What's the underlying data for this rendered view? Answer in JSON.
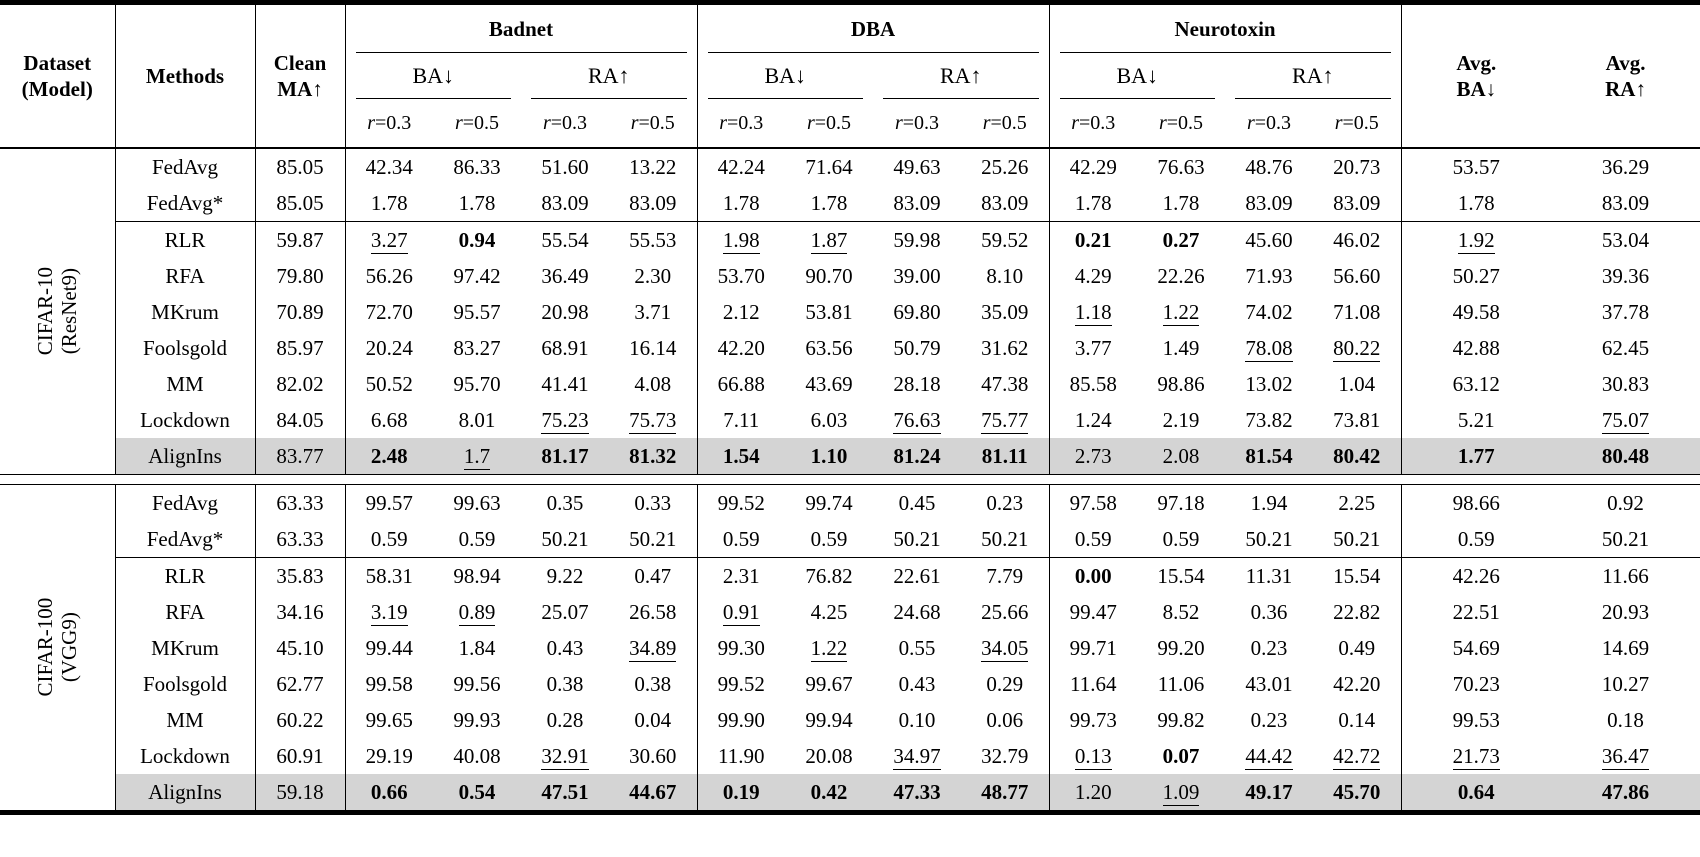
{
  "table": {
    "header": {
      "dataset_line1": "Dataset",
      "dataset_line2": "(Model)",
      "methods": "Methods",
      "clean_line1": "Clean",
      "clean_line2": "MA↑",
      "groups": [
        "Badnet",
        "DBA",
        "Neurotoxin"
      ],
      "sub_ba": "BA↓",
      "sub_ra": "RA↑",
      "rates": [
        "r=0.3",
        "r=0.5"
      ],
      "avg_ba_line1": "Avg.",
      "avg_ba_line2": "BA↓",
      "avg_ra_line1": "Avg.",
      "avg_ra_line2": "RA↑"
    },
    "styles": {
      "highlight_color": "#d4d4d4",
      "rule_color": "#000000"
    },
    "blocks": [
      {
        "dataset_line1": "CIFAR-10",
        "dataset_line2": "(ResNet9)",
        "rows": [
          {
            "method": "FedAvg",
            "cells": [
              "85.05",
              "42.34",
              "86.33",
              "51.60",
              "13.22",
              "42.24",
              "71.64",
              "49.63",
              "25.26",
              "42.29",
              "76.63",
              "48.76",
              "20.73",
              "53.57",
              "36.29"
            ]
          },
          {
            "method": "FedAvg*",
            "cells": [
              "85.05",
              "1.78",
              "1.78",
              "83.09",
              "83.09",
              "1.78",
              "1.78",
              "83.09",
              "83.09",
              "1.78",
              "1.78",
              "83.09",
              "83.09",
              "1.78",
              "83.09"
            ]
          },
          {
            "method": "RLR",
            "sep": true,
            "cells": [
              "59.87",
              "u:3.27",
              "b:0.94",
              "55.54",
              "55.53",
              "u:1.98",
              "u:1.87",
              "59.98",
              "59.52",
              "b:0.21",
              "b:0.27",
              "45.60",
              "46.02",
              "u:1.92",
              "53.04"
            ]
          },
          {
            "method": "RFA",
            "cells": [
              "79.80",
              "56.26",
              "97.42",
              "36.49",
              "2.30",
              "53.70",
              "90.70",
              "39.00",
              "8.10",
              "4.29",
              "22.26",
              "71.93",
              "56.60",
              "50.27",
              "39.36"
            ]
          },
          {
            "method": "MKrum",
            "cells": [
              "70.89",
              "72.70",
              "95.57",
              "20.98",
              "3.71",
              "2.12",
              "53.81",
              "69.80",
              "35.09",
              "u:1.18",
              "u:1.22",
              "74.02",
              "71.08",
              "49.58",
              "37.78"
            ]
          },
          {
            "method": "Foolsgold",
            "cells": [
              "85.97",
              "20.24",
              "83.27",
              "68.91",
              "16.14",
              "42.20",
              "63.56",
              "50.79",
              "31.62",
              "3.77",
              "1.49",
              "u:78.08",
              "u:80.22",
              "42.88",
              "62.45"
            ]
          },
          {
            "method": "MM",
            "cells": [
              "82.02",
              "50.52",
              "95.70",
              "41.41",
              "4.08",
              "66.88",
              "43.69",
              "28.18",
              "47.38",
              "85.58",
              "98.86",
              "13.02",
              "1.04",
              "63.12",
              "30.83"
            ]
          },
          {
            "method": "Lockdown",
            "cells": [
              "84.05",
              "6.68",
              "8.01",
              "u:75.23",
              "u:75.73",
              "7.11",
              "6.03",
              "u:76.63",
              "u:75.77",
              "1.24",
              "2.19",
              "73.82",
              "73.81",
              "5.21",
              "u:75.07"
            ]
          },
          {
            "method": "AlignIns",
            "hl": true,
            "cells": [
              "83.77",
              "b:2.48",
              "u:1.7",
              "b:81.17",
              "b:81.32",
              "b:1.54",
              "b:1.10",
              "b:81.24",
              "b:81.11",
              "2.73",
              "2.08",
              "b:81.54",
              "b:80.42",
              "b:1.77",
              "b:80.48"
            ]
          }
        ]
      },
      {
        "dataset_line1": "CIFAR-100",
        "dataset_line2": "(VGG9)",
        "rows": [
          {
            "method": "FedAvg",
            "cells": [
              "63.33",
              "99.57",
              "99.63",
              "0.35",
              "0.33",
              "99.52",
              "99.74",
              "0.45",
              "0.23",
              "97.58",
              "97.18",
              "1.94",
              "2.25",
              "98.66",
              "0.92"
            ]
          },
          {
            "method": "FedAvg*",
            "cells": [
              "63.33",
              "0.59",
              "0.59",
              "50.21",
              "50.21",
              "0.59",
              "0.59",
              "50.21",
              "50.21",
              "0.59",
              "0.59",
              "50.21",
              "50.21",
              "0.59",
              "50.21"
            ]
          },
          {
            "method": "RLR",
            "sep": true,
            "cells": [
              "35.83",
              "58.31",
              "98.94",
              "9.22",
              "0.47",
              "2.31",
              "76.82",
              "22.61",
              "7.79",
              "b:0.00",
              "15.54",
              "11.31",
              "15.54",
              "42.26",
              "11.66"
            ]
          },
          {
            "method": "RFA",
            "cells": [
              "34.16",
              "u:3.19",
              "u:0.89",
              "25.07",
              "26.58",
              "u:0.91",
              "4.25",
              "24.68",
              "25.66",
              "99.47",
              "8.52",
              "0.36",
              "22.82",
              "22.51",
              "20.93"
            ]
          },
          {
            "method": "MKrum",
            "cells": [
              "45.10",
              "99.44",
              "1.84",
              "0.43",
              "u:34.89",
              "99.30",
              "u:1.22",
              "0.55",
              "u:34.05",
              "99.71",
              "99.20",
              "0.23",
              "0.49",
              "54.69",
              "14.69"
            ]
          },
          {
            "method": "Foolsgold",
            "cells": [
              "62.77",
              "99.58",
              "99.56",
              "0.38",
              "0.38",
              "99.52",
              "99.67",
              "0.43",
              "0.29",
              "11.64",
              "11.06",
              "43.01",
              "42.20",
              "70.23",
              "10.27"
            ]
          },
          {
            "method": "MM",
            "cells": [
              "60.22",
              "99.65",
              "99.93",
              "0.28",
              "0.04",
              "99.90",
              "99.94",
              "0.10",
              "0.06",
              "99.73",
              "99.82",
              "0.23",
              "0.14",
              "99.53",
              "0.18"
            ]
          },
          {
            "method": "Lockdown",
            "cells": [
              "60.91",
              "29.19",
              "40.08",
              "u:32.91",
              "30.60",
              "11.90",
              "20.08",
              "u:34.97",
              "32.79",
              "u:0.13",
              "b:0.07",
              "u:44.42",
              "u:42.72",
              "u:21.73",
              "u:36.47"
            ]
          },
          {
            "method": "AlignIns",
            "hl": true,
            "cells": [
              "59.18",
              "b:0.66",
              "b:0.54",
              "b:47.51",
              "b:44.67",
              "b:0.19",
              "b:0.42",
              "b:47.33",
              "b:48.77",
              "1.20",
              "u:1.09",
              "b:49.17",
              "b:45.70",
              "b:0.64",
              "b:47.86"
            ]
          }
        ]
      }
    ]
  }
}
